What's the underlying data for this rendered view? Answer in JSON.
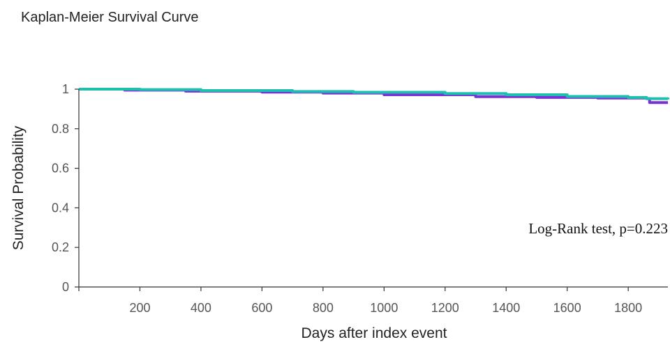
{
  "chart_data": {
    "type": "line",
    "title": "Kaplan-Meier Survival Curve",
    "xlabel": "Days after index event",
    "ylabel": "Survival Probability",
    "xlim": [
      0,
      1930
    ],
    "ylim": [
      0,
      1
    ],
    "x_ticks": [
      200,
      400,
      600,
      800,
      1000,
      1200,
      1400,
      1600,
      1800
    ],
    "y_ticks": [
      0,
      0.2,
      0.4,
      0.6,
      0.8,
      1
    ],
    "y_tick_labels": [
      "0",
      "0.2",
      "0.4",
      "0.6",
      "0.8",
      "1"
    ],
    "grid": false,
    "annotation": "Log-Rank test, p=0.223",
    "series": [
      {
        "color": "#7b2fd9",
        "x": [
          0,
          150,
          350,
          600,
          800,
          1000,
          1300,
          1500,
          1700,
          1860,
          1870,
          1930
        ],
        "y": [
          1.0,
          0.995,
          0.99,
          0.985,
          0.98,
          0.972,
          0.962,
          0.958,
          0.955,
          0.952,
          0.932,
          0.932
        ]
      },
      {
        "color": "#1fbfb0",
        "x": [
          0,
          200,
          400,
          700,
          900,
          1200,
          1400,
          1600,
          1800,
          1860,
          1930
        ],
        "y": [
          1.0,
          0.998,
          0.993,
          0.988,
          0.984,
          0.978,
          0.972,
          0.963,
          0.958,
          0.952,
          0.948
        ]
      }
    ]
  }
}
